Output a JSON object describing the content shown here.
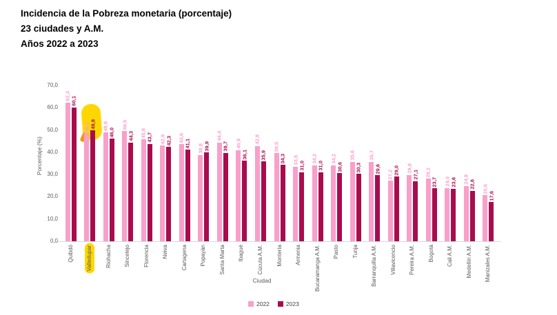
{
  "header": {
    "line1": "Incidencia de la Pobreza monetaria (porcentaje)",
    "line2": "23 ciudades y A.M.",
    "line3": "Años 2022 a 2023"
  },
  "chart_data": {
    "type": "bar",
    "title": "Incidencia de la Pobreza monetaria (porcentaje) 23 ciudades y A.M. Años 2022 a 2023",
    "xlabel": "Ciudad",
    "ylabel": "Porcentaje (%)",
    "ylim": [
      0,
      70
    ],
    "ytick_step": 10,
    "decimal_separator": ",",
    "grid": false,
    "legend_position": "bottom-center",
    "legend": [
      "2022",
      "2023"
    ],
    "colors": {
      "2022": "#F99FCA",
      "2023": "#A90C4D"
    },
    "highlight_color": "#FFD700",
    "highlight_accent": "#F7941D",
    "highlighted_category": "Valledupar",
    "categories": [
      "Quibdó",
      "Valledupar",
      "Riohacha",
      "Sincelejo",
      "Florencia",
      "Neiva",
      "Cartagena",
      "Popayán",
      "Santa Marta",
      "Ibagué",
      "Cúcuta A.M.",
      "Montería",
      "Armenia",
      "Bucaramanga A.M.",
      "Pasto",
      "Tunja",
      "Barranquilla A.M.",
      "Villavicencio",
      "Pereira A.M.",
      "Bogotá",
      "Cali A.M.",
      "Medellín A.M.",
      "Manizales A.M."
    ],
    "series": [
      {
        "name": "2022",
        "values": [
          62.3,
          48.5,
          48.8,
          49.5,
          45.8,
          42.9,
          43.6,
          38.8,
          44.4,
          40.9,
          42.8,
          39.5,
          33.5,
          34.2,
          34.2,
          35.6,
          35.7,
          27.2,
          29.8,
          28.1,
          24.0,
          24.8,
          20.6
        ]
      },
      {
        "name": "2023",
        "values": [
          60.1,
          49.8,
          46.0,
          44.3,
          43.7,
          42.3,
          41.1,
          39.9,
          39.7,
          36.1,
          35.9,
          34.3,
          31.0,
          31.0,
          30.6,
          30.3,
          29.6,
          29.0,
          27.1,
          23.7,
          23.6,
          22.6,
          17.6
        ]
      }
    ]
  }
}
